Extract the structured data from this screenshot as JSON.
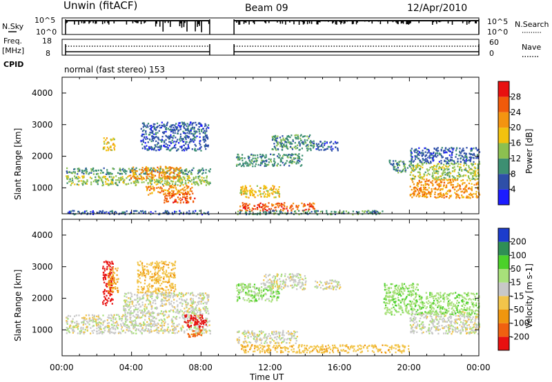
{
  "header": {
    "station": "Unwin (fitACF)",
    "beam": "Beam 09",
    "date": "12/Apr/2010"
  },
  "nsky": {
    "label": "N.Sky",
    "left_ticks": [
      "10^5",
      "10^0"
    ],
    "right_ticks": [
      "10^5",
      "10^0"
    ],
    "right_label": "N.Search"
  },
  "freq": {
    "label_line1": "Freq.",
    "label_line2": "[MHz]",
    "left_ticks": [
      "18",
      "8"
    ],
    "right_ticks": [
      "60",
      "0"
    ],
    "right_label": "Nave"
  },
  "cpid": {
    "label": "CPID",
    "mode": "normal (fast stereo) 153"
  },
  "axes": {
    "x_tick_labels": [
      "00:00",
      "04:00",
      "08:00",
      "12:00",
      "16:00",
      "20:00",
      "00:00"
    ],
    "xlabel": "Time UT",
    "ylabel": "Slant Range [km]",
    "y_tick_labels": [
      "1000",
      "2000",
      "3000",
      "4000"
    ]
  },
  "colorbars": {
    "power": {
      "label": "Power [dB]",
      "tick_labels": [
        "4",
        "8",
        "12",
        "16",
        "20",
        "24",
        "28"
      ],
      "colors": [
        "#1c1cff",
        "#2e4fa8",
        "#3d8f72",
        "#8cc050",
        "#f2c20e",
        "#f49410",
        "#f05a0a",
        "#e81010"
      ]
    },
    "velocity": {
      "label": "Velocity [m s-1]",
      "tick_labels": [
        "200",
        "100",
        "50",
        "15",
        "-15",
        "-50",
        "-100",
        "-200"
      ],
      "colors": [
        "#1c3ccc",
        "#2f8f55",
        "#4bd12a",
        "#a8e07a",
        "#c8c8c8",
        "#f2c44a",
        "#f0960f",
        "#f06010",
        "#e81010"
      ]
    }
  },
  "chart_data": [
    {
      "type": "heatmap",
      "name": "power",
      "x_range_hours": [
        0,
        24
      ],
      "y_range_km": [
        180,
        4500
      ],
      "data_gap_hours": [
        8.5,
        9.9
      ],
      "regions": [
        {
          "t": [
            0.2,
            8.5
          ],
          "r": [
            1100,
            1400
          ],
          "value_db": 14
        },
        {
          "t": [
            0.2,
            8.5
          ],
          "r": [
            1450,
            1650
          ],
          "value_db": 10
        },
        {
          "t": [
            2.3,
            3.0
          ],
          "r": [
            2200,
            2600
          ],
          "value_db": 18
        },
        {
          "t": [
            4.8,
            7.5
          ],
          "r": [
            800,
            1100
          ],
          "value_db": 22
        },
        {
          "t": [
            5.8,
            7.6
          ],
          "r": [
            550,
            850
          ],
          "value_db": 26
        },
        {
          "t": [
            3.8,
            6.8
          ],
          "r": [
            1300,
            1700
          ],
          "value_db": 20
        },
        {
          "t": [
            4.5,
            8.4
          ],
          "r": [
            2200,
            3100
          ],
          "value_db": 6
        },
        {
          "t": [
            0.3,
            8.4
          ],
          "r": [
            180,
            300
          ],
          "value_db": 6
        },
        {
          "t": [
            10.0,
            13.8
          ],
          "r": [
            1700,
            2100
          ],
          "value_db": 10
        },
        {
          "t": [
            10.2,
            12.5
          ],
          "r": [
            700,
            1100
          ],
          "value_db": 16
        },
        {
          "t": [
            10.2,
            14.5
          ],
          "r": [
            300,
            550
          ],
          "value_db": 24
        },
        {
          "t": [
            10.0,
            18.5
          ],
          "r": [
            180,
            300
          ],
          "value_db": 8
        },
        {
          "t": [
            12.0,
            14.5
          ],
          "r": [
            2200,
            2700
          ],
          "value_db": 8
        },
        {
          "t": [
            14.6,
            15.9
          ],
          "r": [
            2200,
            2500
          ],
          "value_db": 6
        },
        {
          "t": [
            18.8,
            20.0
          ],
          "r": [
            1500,
            1900
          ],
          "value_db": 10
        },
        {
          "t": [
            20.0,
            24.0
          ],
          "r": [
            700,
            1300
          ],
          "value_db": 20
        },
        {
          "t": [
            20.0,
            24.0
          ],
          "r": [
            1300,
            1800
          ],
          "value_db": 14
        },
        {
          "t": [
            20.0,
            24.0
          ],
          "r": [
            1800,
            2300
          ],
          "value_db": 6
        }
      ]
    },
    {
      "type": "heatmap",
      "name": "velocity",
      "x_range_hours": [
        0,
        24
      ],
      "y_range_km": [
        180,
        4500
      ],
      "data_gap_hours": [
        8.5,
        9.9
      ],
      "regions": [
        {
          "t": [
            0.2,
            8.5
          ],
          "r": [
            900,
            1500
          ],
          "value_ms": 0
        },
        {
          "t": [
            2.3,
            2.9
          ],
          "r": [
            1800,
            3200
          ],
          "value_ms": -250
        },
        {
          "t": [
            2.6,
            3.2
          ],
          "r": [
            2200,
            3000
          ],
          "value_ms": -60
        },
        {
          "t": [
            4.3,
            6.5
          ],
          "r": [
            2200,
            3200
          ],
          "value_ms": -40
        },
        {
          "t": [
            7.0,
            8.3
          ],
          "r": [
            1100,
            1500
          ],
          "value_ms": -250
        },
        {
          "t": [
            7.2,
            8.1
          ],
          "r": [
            800,
            1050
          ],
          "value_ms": -120
        },
        {
          "t": [
            3.5,
            8.4
          ],
          "r": [
            1500,
            2200
          ],
          "value_ms": 0
        },
        {
          "t": [
            10.0,
            12.5
          ],
          "r": [
            1900,
            2500
          ],
          "value_ms": 30
        },
        {
          "t": [
            11.5,
            14.0
          ],
          "r": [
            2300,
            2800
          ],
          "value_ms": 0
        },
        {
          "t": [
            10.0,
            13.5
          ],
          "r": [
            600,
            1000
          ],
          "value_ms": 0
        },
        {
          "t": [
            10.2,
            20.0
          ],
          "r": [
            300,
            550
          ],
          "value_ms": -50
        },
        {
          "t": [
            14.5,
            16.0
          ],
          "r": [
            2300,
            2600
          ],
          "value_ms": 0
        },
        {
          "t": [
            18.5,
            20.5
          ],
          "r": [
            1500,
            2500
          ],
          "value_ms": 40
        },
        {
          "t": [
            20.0,
            24.0
          ],
          "r": [
            900,
            1600
          ],
          "value_ms": 0
        },
        {
          "t": [
            20.5,
            24.0
          ],
          "r": [
            1500,
            2200
          ],
          "value_ms": 35
        }
      ]
    }
  ]
}
